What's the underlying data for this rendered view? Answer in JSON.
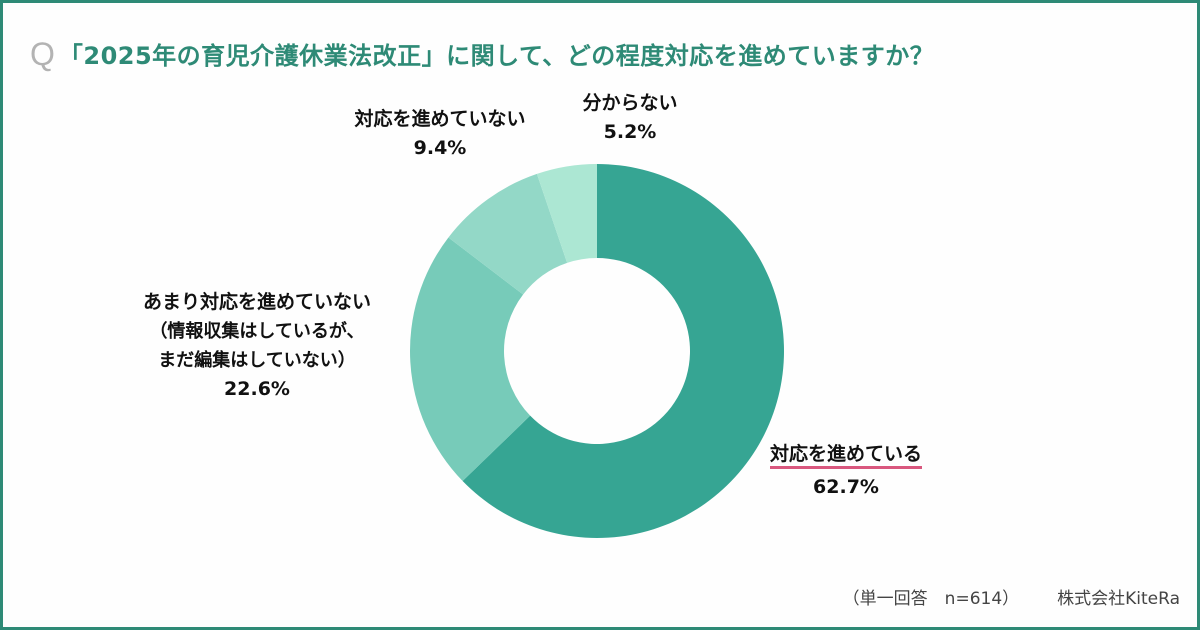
{
  "title": {
    "q_mark": "Q",
    "text": "「2025年の育児介護休業法改正」に関して、どの程度対応を進めていますか？"
  },
  "colors": {
    "title": "#2e8a76",
    "border": "#2e8a76",
    "highlight_underline": "#d9577e"
  },
  "labels": {
    "progressing": {
      "name": "対応を進めている",
      "pct": "62.7%"
    },
    "somewhat_not": {
      "name": "あまり対応を進めていない",
      "note1": "（情報収集はしているが、",
      "note2": "まだ編集はしていない）",
      "pct": "22.6%"
    },
    "not_progressing": {
      "name": "対応を進めていない",
      "pct": "9.4%"
    },
    "unknown": {
      "name": "分からない",
      "pct": "5.2%"
    }
  },
  "footer": {
    "sample": "（単一回答　n=614）",
    "source": "株式会社KiteRa"
  },
  "chart_data": {
    "type": "pie",
    "variant": "donut",
    "title": "「2025年の育児介護休業法改正」に関して、どの程度対応を進めていますか？",
    "categories": [
      "対応を進めている",
      "あまり対応を進めていない（情報収集はしているが、まだ編集はしていない）",
      "対応を進めていない",
      "分からない"
    ],
    "values": [
      62.7,
      22.6,
      9.4,
      5.2
    ],
    "unit": "%",
    "colors": [
      "#36a593",
      "#77cbb9",
      "#93d8c7",
      "#ace7d3"
    ],
    "start_angle": "12 o'clock, clockwise",
    "n": 614,
    "note": "単一回答",
    "source": "株式会社KiteRa",
    "legend": "none (direct labels)"
  }
}
